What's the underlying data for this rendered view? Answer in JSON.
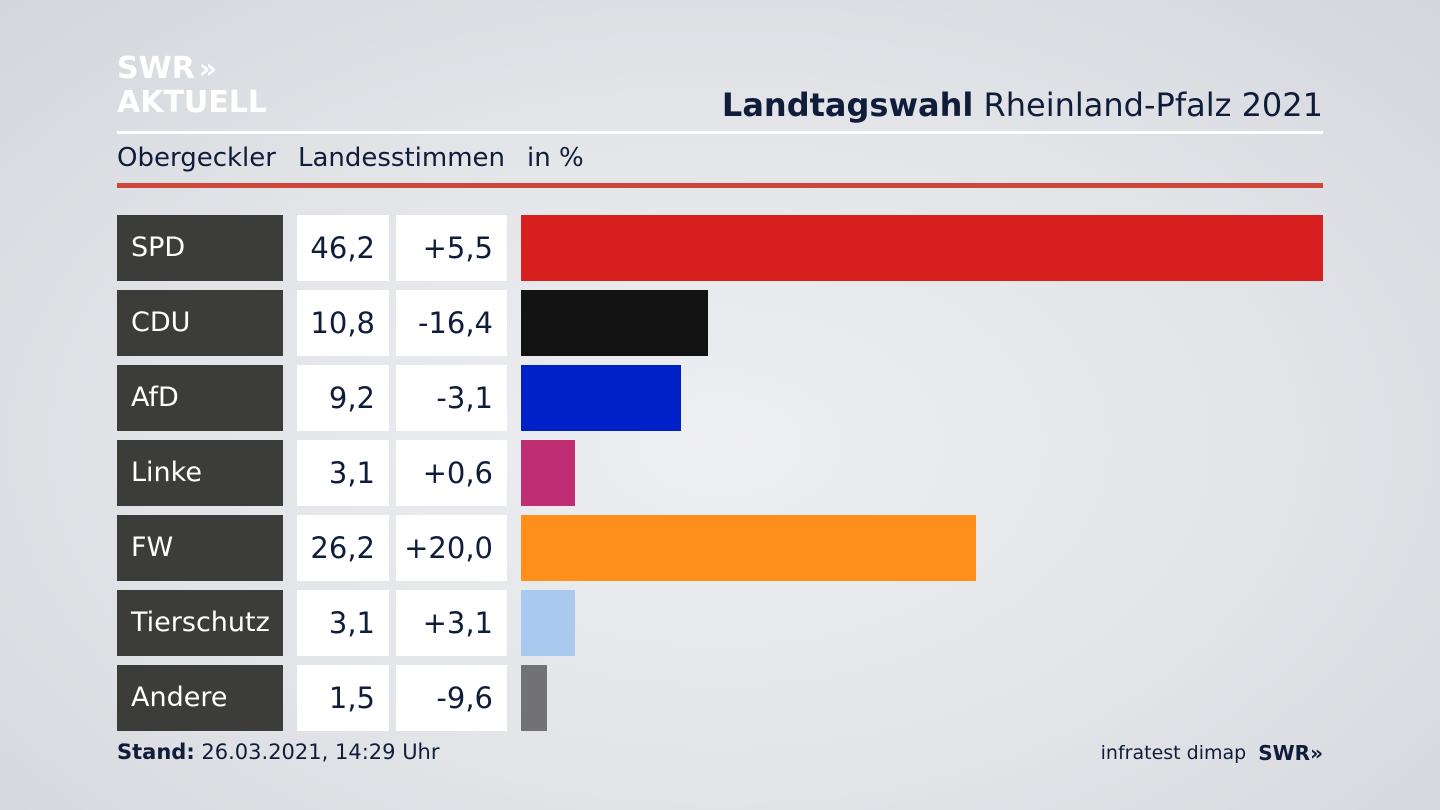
{
  "logo": {
    "line1": "SWR",
    "arrows": "»",
    "line2": "AKTUELL"
  },
  "header": {
    "title_bold": "Landtagswahl",
    "title_rest": "Rheinland-Pfalz 2021"
  },
  "subheader": {
    "location": "Obergeckler",
    "vote_type": "Landesstimmen",
    "unit": "in %"
  },
  "footer": {
    "stand_label": "Stand:",
    "stand_value": "26.03.2021, 14:29 Uhr",
    "source": "infratest dimap",
    "brand": "SWR",
    "brand_arrows": "»"
  },
  "chart_data": {
    "type": "bar",
    "orientation": "horizontal",
    "categories": [
      "SPD",
      "CDU",
      "AfD",
      "Linke",
      "FW",
      "Tierschutz",
      "Andere"
    ],
    "values": [
      46.2,
      10.8,
      9.2,
      3.1,
      26.2,
      3.1,
      1.5
    ],
    "values_label": [
      "46,2",
      "10,8",
      "9,2",
      "3,1",
      "26,2",
      "3,1",
      "1,5"
    ],
    "changes_label": [
      "+5,5",
      "-16,4",
      "-3,1",
      "+0,6",
      "+20,0",
      "+3,1",
      "-9,6"
    ],
    "colors": [
      "#d71f20",
      "#131313",
      "#0021c8",
      "#bf2d73",
      "#ff8f1b",
      "#a9c9ef",
      "#727274"
    ]
  }
}
